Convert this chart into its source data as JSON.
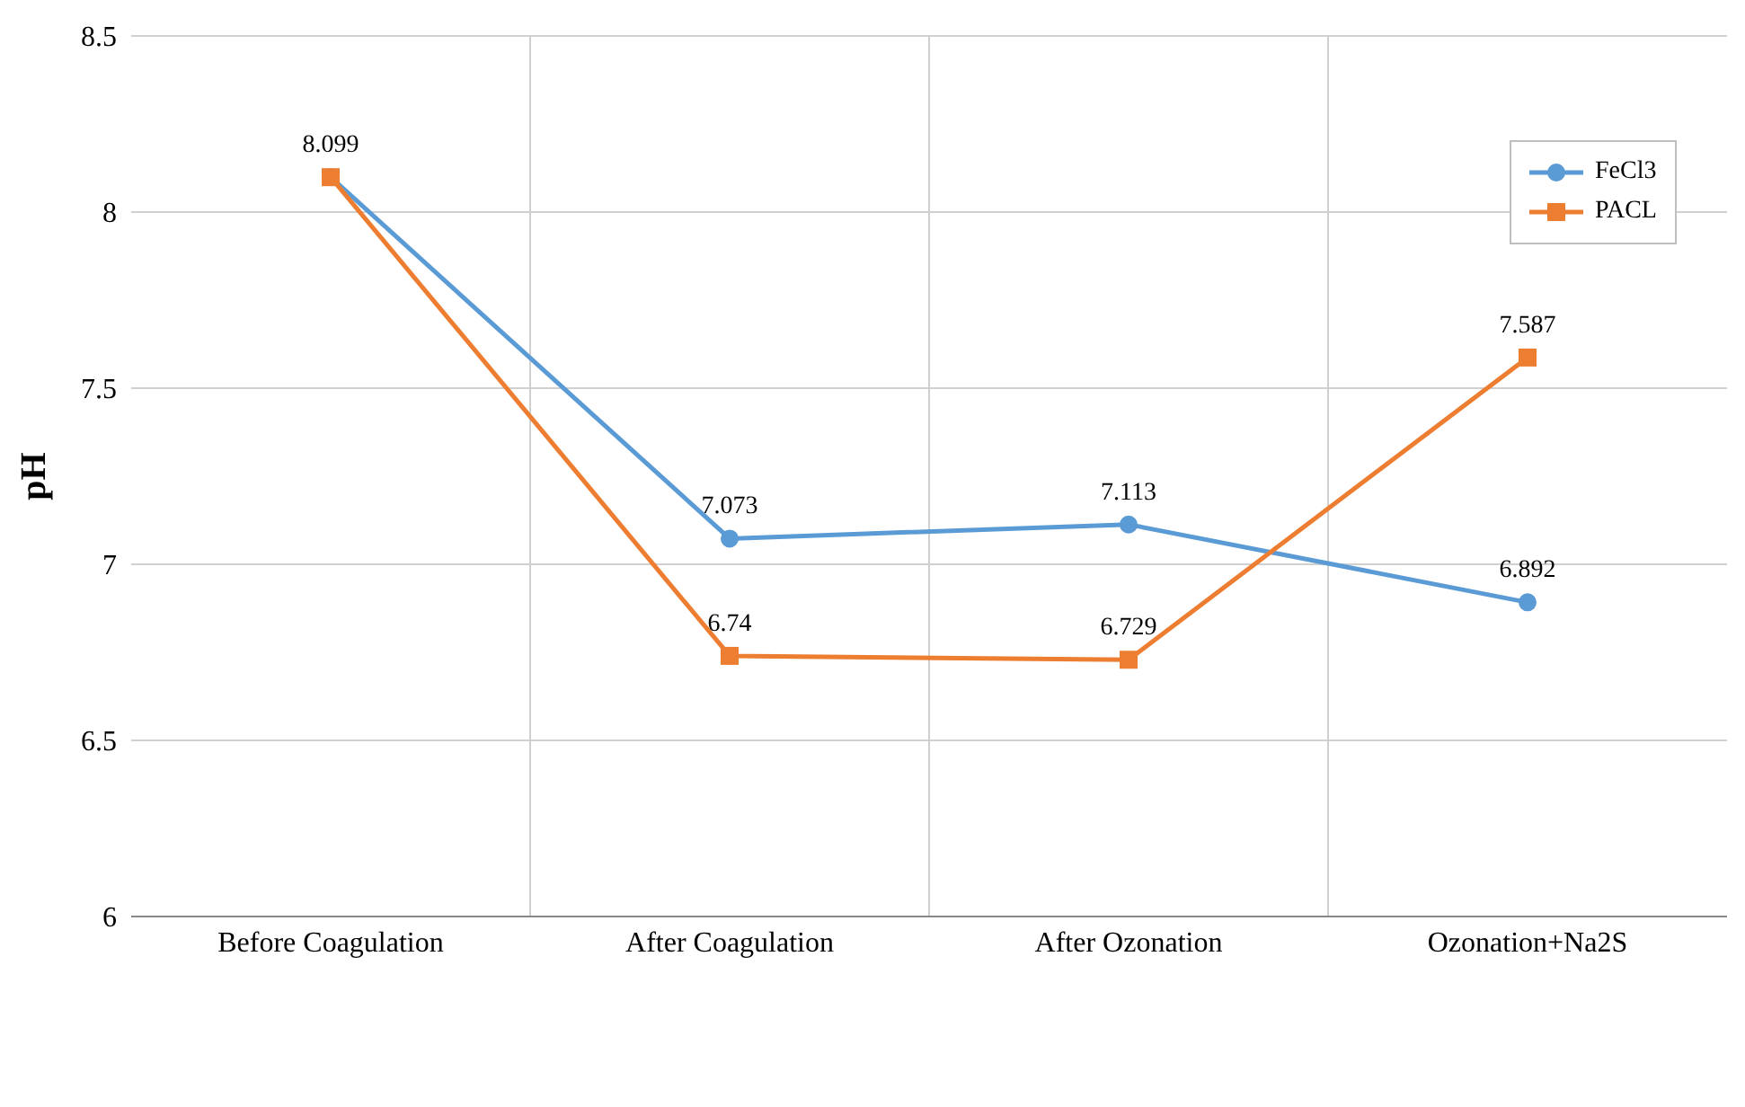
{
  "chart_data": {
    "type": "line",
    "ylabel": "pH",
    "categories": [
      "Before Coagulation",
      "After Coagulation",
      "After Ozonation",
      "Ozonation+Na2S"
    ],
    "series": [
      {
        "name": "FeCl3",
        "color": "#5b9bd5",
        "marker": "circle",
        "values": [
          8.099,
          7.073,
          7.113,
          6.892
        ],
        "value_labels": [
          "8.099",
          "7.073",
          "7.113",
          "6.892"
        ]
      },
      {
        "name": "PACL",
        "color": "#ed7d31",
        "marker": "square",
        "values": [
          8.099,
          6.74,
          6.729,
          7.587
        ],
        "value_labels": [
          null,
          "6.74",
          "6.729",
          "7.587"
        ]
      }
    ],
    "ylim": [
      6,
      8.5
    ],
    "yticks": [
      6,
      6.5,
      7,
      7.5,
      8,
      8.5
    ],
    "grid": true,
    "legend": "top right"
  }
}
